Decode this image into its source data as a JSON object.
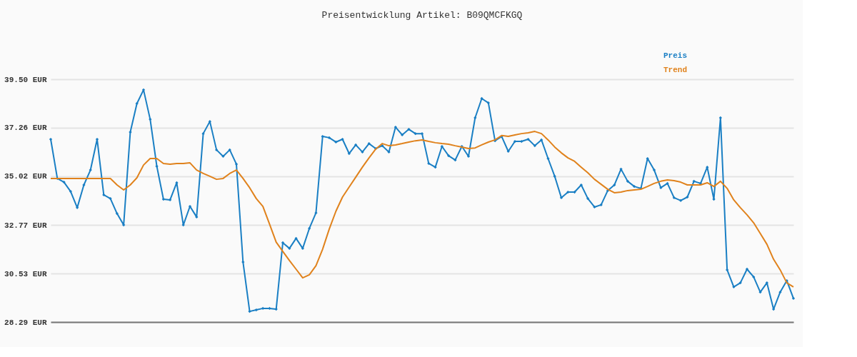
{
  "chart_data": {
    "type": "line",
    "title": "Preisentwicklung Artikel: B09QMCFKGQ",
    "categories": [
      null,
      null,
      null,
      null,
      null,
      null,
      null,
      null,
      null,
      null,
      null,
      null,
      null,
      null,
      null,
      null,
      null,
      null,
      null,
      null,
      null,
      null,
      null,
      null,
      null,
      null,
      null,
      null,
      null,
      null,
      null,
      null,
      null,
      null,
      null,
      null,
      null,
      null,
      null,
      null,
      null,
      null,
      null,
      null,
      null,
      null,
      null,
      null,
      null,
      null,
      null,
      null,
      null,
      null,
      null,
      null,
      null,
      null,
      null,
      null,
      null,
      null,
      null,
      null,
      null,
      null,
      null,
      null,
      null,
      null,
      null,
      null,
      null,
      null,
      null,
      null,
      null,
      null,
      null,
      null,
      null,
      null,
      null,
      null,
      null,
      null,
      null,
      null,
      null,
      null,
      null,
      null,
      null,
      null,
      null,
      null,
      null,
      null,
      null,
      null,
      null,
      null,
      null,
      null,
      null,
      null,
      null,
      null,
      null,
      null,
      null,
      null,
      null
    ],
    "series": [
      {
        "name": "Preis",
        "color": "#1a7fc4",
        "marker": "diamond",
        "values": [
          36.73,
          34.92,
          34.75,
          34.32,
          33.57,
          34.62,
          35.31,
          36.73,
          34.16,
          33.99,
          33.3,
          32.77,
          37.06,
          38.38,
          39.01,
          37.65,
          35.48,
          33.96,
          33.93,
          34.72,
          32.77,
          33.63,
          33.14,
          36.99,
          37.55,
          36.24,
          35.94,
          36.24,
          35.58,
          31.06,
          28.78,
          28.85,
          28.92,
          28.92,
          28.88,
          31.95,
          31.69,
          32.15,
          31.69,
          32.61,
          33.33,
          36.86,
          36.8,
          36.6,
          36.73,
          36.07,
          36.47,
          36.14,
          36.53,
          36.3,
          36.43,
          36.14,
          37.29,
          36.93,
          37.19,
          36.99,
          36.99,
          35.61,
          35.44,
          36.4,
          35.97,
          35.77,
          36.4,
          35.94,
          37.72,
          38.61,
          38.41,
          36.66,
          36.86,
          36.17,
          36.63,
          36.63,
          36.73,
          36.43,
          36.7,
          35.84,
          35.02,
          34.03,
          34.29,
          34.29,
          34.62,
          33.99,
          33.6,
          33.7,
          34.36,
          34.62,
          35.35,
          34.79,
          34.55,
          34.46,
          35.84,
          35.31,
          34.49,
          34.69,
          34.03,
          33.9,
          34.06,
          34.79,
          34.69,
          35.44,
          33.96,
          37.72,
          30.7,
          29.91,
          30.1,
          30.73,
          30.37,
          29.67,
          30.1,
          28.88,
          29.67,
          30.2,
          29.38
        ]
      },
      {
        "name": "Trend",
        "color": "#e0821c",
        "marker": "none",
        "values": [
          34.92,
          34.92,
          34.92,
          34.92,
          34.92,
          34.92,
          34.92,
          34.92,
          34.92,
          34.92,
          34.62,
          34.39,
          34.62,
          34.95,
          35.54,
          35.84,
          35.84,
          35.61,
          35.58,
          35.61,
          35.61,
          35.64,
          35.31,
          35.15,
          35.02,
          34.88,
          34.92,
          35.15,
          35.31,
          34.92,
          34.49,
          33.99,
          33.63,
          32.81,
          31.98,
          31.55,
          31.13,
          30.73,
          30.33,
          30.47,
          30.89,
          31.65,
          32.58,
          33.4,
          34.06,
          34.52,
          34.98,
          35.44,
          35.87,
          36.27,
          36.53,
          36.43,
          36.47,
          36.53,
          36.6,
          36.66,
          36.7,
          36.63,
          36.57,
          36.53,
          36.5,
          36.43,
          36.37,
          36.3,
          36.33,
          36.47,
          36.6,
          36.7,
          36.9,
          36.86,
          36.93,
          36.99,
          37.03,
          37.09,
          36.99,
          36.7,
          36.37,
          36.1,
          35.87,
          35.71,
          35.44,
          35.18,
          34.88,
          34.65,
          34.42,
          34.26,
          34.29,
          34.36,
          34.39,
          34.42,
          34.55,
          34.69,
          34.79,
          34.85,
          34.82,
          34.75,
          34.62,
          34.62,
          34.62,
          34.72,
          34.55,
          34.79,
          34.46,
          33.93,
          33.57,
          33.24,
          32.87,
          32.38,
          31.88,
          31.19,
          30.7,
          30.1,
          29.91
        ]
      }
    ],
    "ylim": [
      28.29,
      39.5
    ],
    "yticks": [
      {
        "value": 28.29,
        "label": "28.29 EUR"
      },
      {
        "value": 30.53,
        "label": "30.53 EUR"
      },
      {
        "value": 32.77,
        "label": "32.77 EUR"
      },
      {
        "value": 35.02,
        "label": "35.02 EUR"
      },
      {
        "value": 37.26,
        "label": "37.26 EUR"
      },
      {
        "value": 39.5,
        "label": "39.50 EUR"
      }
    ],
    "grid": "y",
    "legend": "top right",
    "tick_labels": "y",
    "line_style": "solid"
  }
}
